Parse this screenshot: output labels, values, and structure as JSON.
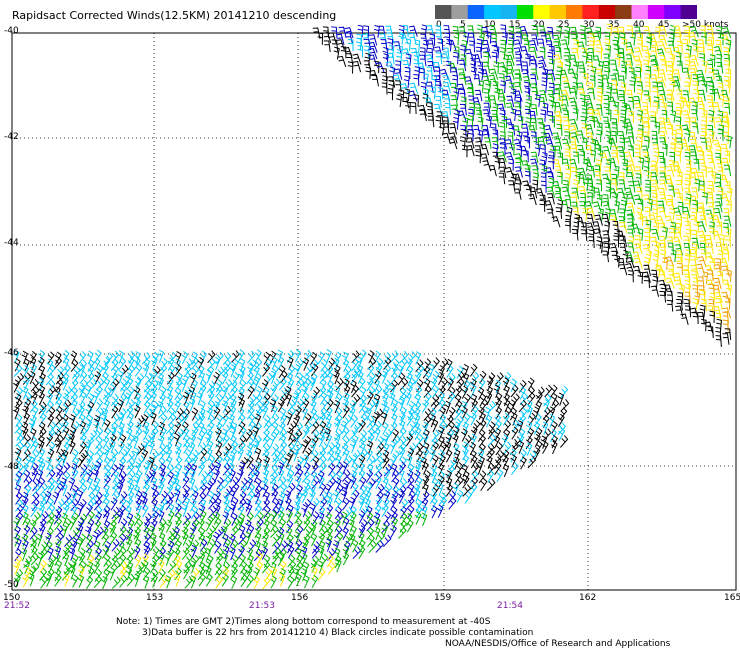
{
  "title": "Rapidsact Corrected Winds(12.5KM) 20141210 descending",
  "legend": {
    "colors": [
      "#555555",
      "#9e9e9e",
      "#0a64ff",
      "#00c8ff",
      "#16b4f0",
      "#00e000",
      "#ffff00",
      "#ffc800",
      "#ff7a00",
      "#ff2020",
      "#c80000",
      "#8c3c14",
      "#ff80ff",
      "#d000ff",
      "#8000ff",
      "#500090"
    ],
    "labels": [
      "0",
      "5",
      "10",
      "15",
      "20",
      "25",
      "30",
      "35",
      "40",
      "45",
      ">50 knots"
    ],
    "unit": "knots"
  },
  "axes": {
    "lat_labels": [
      "-40",
      "-42",
      "-44",
      "-46",
      "-48",
      "-50"
    ],
    "lon_labels": [
      "150",
      "153",
      "156",
      "159",
      "162",
      "165"
    ]
  },
  "times": [
    "21:52",
    "21:53",
    "21:54"
  ],
  "notes": {
    "line1": "Note: 1) Times are GMT 2)Times along bottom correspond to measurement at -40S",
    "line2": "3)Data buffer is 22 hrs from 20141210 4) Black circles indicate possible contamination",
    "credit": "NOAA/NESDIS/Office of Research and Applications"
  },
  "wind_speed_colors": {
    "calm": "#000000",
    "light": "#00c8ff",
    "moderate": "#0000c8",
    "fresh": "#00b400",
    "strong": "#ffe800",
    "gale": "#f0a000"
  }
}
